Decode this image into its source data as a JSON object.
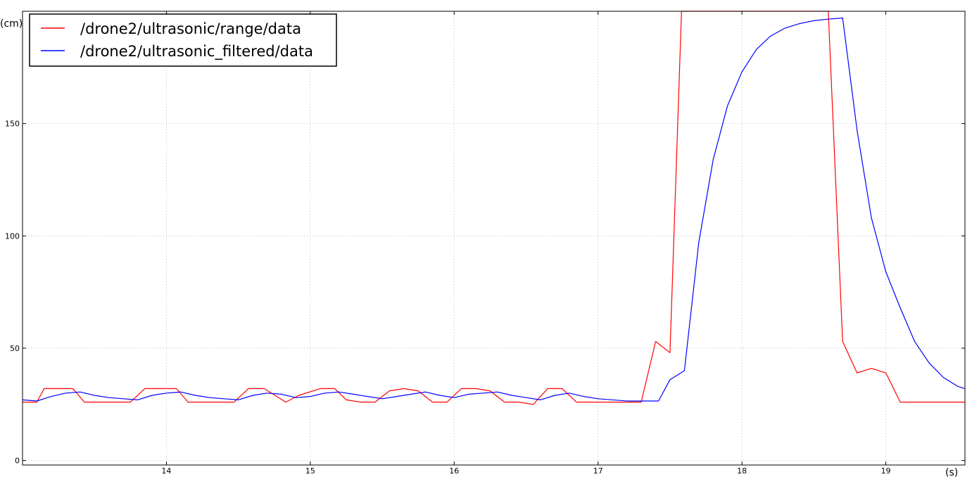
{
  "chart_data": {
    "type": "line",
    "title": "",
    "xlabel": "(s)",
    "ylabel": "(cm)",
    "xlim": [
      13.0,
      19.55
    ],
    "ylim": [
      -2,
      200
    ],
    "x_ticks": [
      14,
      15,
      16,
      17,
      18,
      19
    ],
    "y_ticks": [
      0,
      50,
      100,
      150
    ],
    "grid": true,
    "legend_position": "top-left",
    "series": [
      {
        "name": "/drone2/ultrasonic/range/data",
        "color": "#ff0000",
        "points": [
          [
            13.0,
            26
          ],
          [
            13.1,
            26
          ],
          [
            13.15,
            32
          ],
          [
            13.35,
            32
          ],
          [
            13.43,
            26
          ],
          [
            13.75,
            26
          ],
          [
            13.85,
            32
          ],
          [
            14.07,
            32
          ],
          [
            14.15,
            26
          ],
          [
            14.47,
            26
          ],
          [
            14.57,
            32
          ],
          [
            14.68,
            32
          ],
          [
            14.83,
            26
          ],
          [
            14.92,
            29
          ],
          [
            15.07,
            32
          ],
          [
            15.17,
            32
          ],
          [
            15.25,
            27
          ],
          [
            15.35,
            26
          ],
          [
            15.45,
            26
          ],
          [
            15.55,
            31
          ],
          [
            15.65,
            32
          ],
          [
            15.75,
            31
          ],
          [
            15.85,
            26
          ],
          [
            15.95,
            26
          ],
          [
            16.05,
            32
          ],
          [
            16.15,
            32
          ],
          [
            16.25,
            31
          ],
          [
            16.35,
            26
          ],
          [
            16.45,
            26
          ],
          [
            16.55,
            25
          ],
          [
            16.65,
            32
          ],
          [
            16.75,
            32
          ],
          [
            16.85,
            26
          ],
          [
            17.3,
            26
          ],
          [
            17.4,
            53
          ],
          [
            17.5,
            48
          ],
          [
            17.58,
            200
          ],
          [
            18.6,
            200
          ],
          [
            18.7,
            53
          ],
          [
            18.8,
            39
          ],
          [
            18.9,
            41
          ],
          [
            19.0,
            39
          ],
          [
            19.1,
            26
          ],
          [
            19.55,
            26
          ]
        ]
      },
      {
        "name": "/drone2/ultrasonic_filtered/data",
        "color": "#0000ff",
        "points": [
          [
            13.0,
            27
          ],
          [
            13.1,
            26.5
          ],
          [
            13.2,
            28.5
          ],
          [
            13.3,
            30
          ],
          [
            13.4,
            30.5
          ],
          [
            13.5,
            29
          ],
          [
            13.6,
            28
          ],
          [
            13.7,
            27.5
          ],
          [
            13.8,
            27
          ],
          [
            13.9,
            29
          ],
          [
            14.0,
            30
          ],
          [
            14.1,
            30.5
          ],
          [
            14.2,
            29
          ],
          [
            14.3,
            28
          ],
          [
            14.4,
            27.5
          ],
          [
            14.5,
            27
          ],
          [
            14.6,
            29
          ],
          [
            14.7,
            30
          ],
          [
            14.8,
            29.5
          ],
          [
            14.9,
            28
          ],
          [
            15.0,
            28.5
          ],
          [
            15.1,
            30
          ],
          [
            15.2,
            30.5
          ],
          [
            15.3,
            29.5
          ],
          [
            15.4,
            28.5
          ],
          [
            15.5,
            27.5
          ],
          [
            15.6,
            28.5
          ],
          [
            15.7,
            29.5
          ],
          [
            15.8,
            30.5
          ],
          [
            15.9,
            29
          ],
          [
            16.0,
            28
          ],
          [
            16.1,
            29.5
          ],
          [
            16.2,
            30
          ],
          [
            16.3,
            30.5
          ],
          [
            16.4,
            29
          ],
          [
            16.5,
            28
          ],
          [
            16.6,
            27
          ],
          [
            16.7,
            29
          ],
          [
            16.8,
            30
          ],
          [
            16.9,
            28.5
          ],
          [
            17.0,
            27.5
          ],
          [
            17.2,
            26.5
          ],
          [
            17.42,
            26.5
          ],
          [
            17.5,
            36
          ],
          [
            17.6,
            40
          ],
          [
            17.7,
            97
          ],
          [
            17.8,
            134
          ],
          [
            17.9,
            158
          ],
          [
            18.0,
            173
          ],
          [
            18.1,
            183
          ],
          [
            18.2,
            189
          ],
          [
            18.3,
            192.5
          ],
          [
            18.4,
            194.5
          ],
          [
            18.5,
            195.8
          ],
          [
            18.6,
            196.5
          ],
          [
            18.7,
            197
          ],
          [
            18.8,
            147
          ],
          [
            18.9,
            108
          ],
          [
            19.0,
            84
          ],
          [
            19.1,
            68
          ],
          [
            19.2,
            53
          ],
          [
            19.3,
            43.5
          ],
          [
            19.4,
            37
          ],
          [
            19.5,
            33
          ],
          [
            19.55,
            32
          ]
        ]
      }
    ]
  }
}
